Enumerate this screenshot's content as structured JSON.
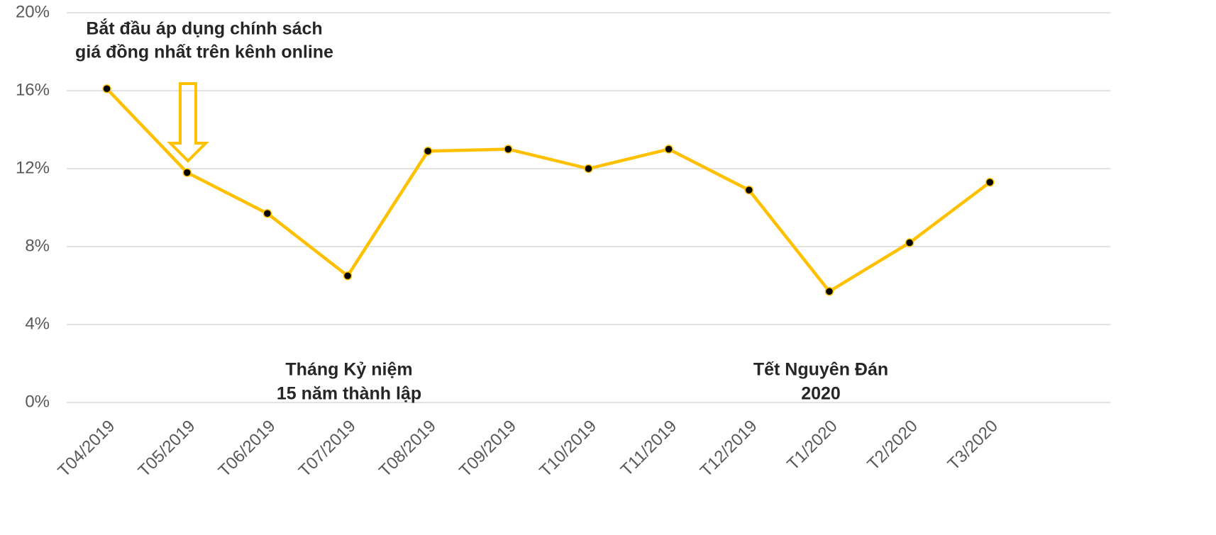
{
  "chart_data": {
    "type": "line",
    "categories": [
      "T04/2019",
      "T05/2019",
      "T06/2019",
      "T07/2019",
      "T08/2019",
      "T09/2019",
      "T10/2019",
      "T11/2019",
      "T12/2019",
      "T1/2020",
      "T2/2020",
      "T3/2020"
    ],
    "series": [
      {
        "color": "#FFC000",
        "values": [
          16.1,
          11.8,
          9.7,
          6.5,
          12.9,
          13.0,
          12.0,
          13.0,
          10.9,
          5.7,
          8.2,
          11.3
        ]
      }
    ],
    "ylim": [
      0,
      20
    ],
    "yticks": [
      {
        "value": 0,
        "label": "0%"
      },
      {
        "value": 4,
        "label": "4%"
      },
      {
        "value": 8,
        "label": "8%"
      },
      {
        "value": 12,
        "label": "12%"
      },
      {
        "value": 16,
        "label": "16%"
      },
      {
        "value": 20,
        "label": "20%"
      }
    ],
    "grid": true,
    "annotations": [
      [
        "Bắt đầu áp dụng chính sách",
        "giá đồng nhất trên kênh online"
      ],
      [
        "Tháng Kỷ niệm",
        "15 năm thành lập"
      ],
      [
        "Tết Nguyên Đán",
        "2020"
      ]
    ]
  }
}
